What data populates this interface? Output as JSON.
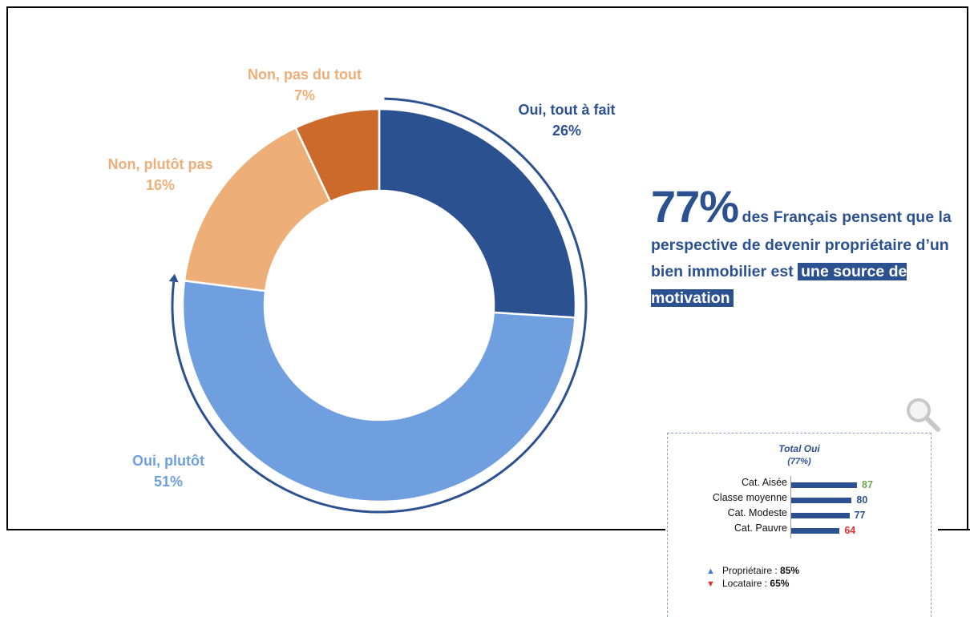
{
  "chart_data": {
    "type": "pie",
    "variant": "donut",
    "segments": [
      {
        "label": "Oui, tout à fait",
        "value": 26,
        "value_label": "26%",
        "color": "#2c5191"
      },
      {
        "label": "Oui, plutôt",
        "value": 51,
        "value_label": "51%",
        "color": "#6f9fdf"
      },
      {
        "label": "Non, plutôt pas",
        "value": 16,
        "value_label": "16%",
        "color": "#edae77"
      },
      {
        "label": "Non, pas du tout",
        "value": 7,
        "value_label": "7%",
        "color": "#cc6a2b"
      }
    ]
  },
  "headline": {
    "big": "77%",
    "text_1": "des Français pensent que la perspective de devenir propriétaire d’un bien immobilier est",
    "highlight": "une source de motivation"
  },
  "detail": {
    "title": "Total Oui",
    "subtitle": "(77%)",
    "chart_data": {
      "type": "bar",
      "orientation": "horizontal",
      "categories": [
        "Cat. Aisée",
        "Classe moyenne",
        "Cat. Modeste",
        "Cat. Pauvre"
      ],
      "values": [
        87,
        80,
        77,
        64
      ],
      "value_colors": [
        "#6aa84f",
        "#2c5191",
        "#2c5191",
        "#e03030"
      ]
    },
    "legend": [
      {
        "label": "Propriétaire :",
        "value": "85%",
        "marker": "▲",
        "color": "#3f7fd6"
      },
      {
        "label": "Locataire :",
        "value": "65%",
        "marker": "▼",
        "color": "#e03030"
      }
    ]
  },
  "colors": {
    "accent": "#2c5191",
    "light_blue": "#6f9fdf",
    "light_orange": "#edae77",
    "dark_orange": "#cc6a2b",
    "up": "#3f7fd6",
    "down": "#e03030"
  },
  "icons": {
    "magnifier": "magnifier-icon"
  }
}
